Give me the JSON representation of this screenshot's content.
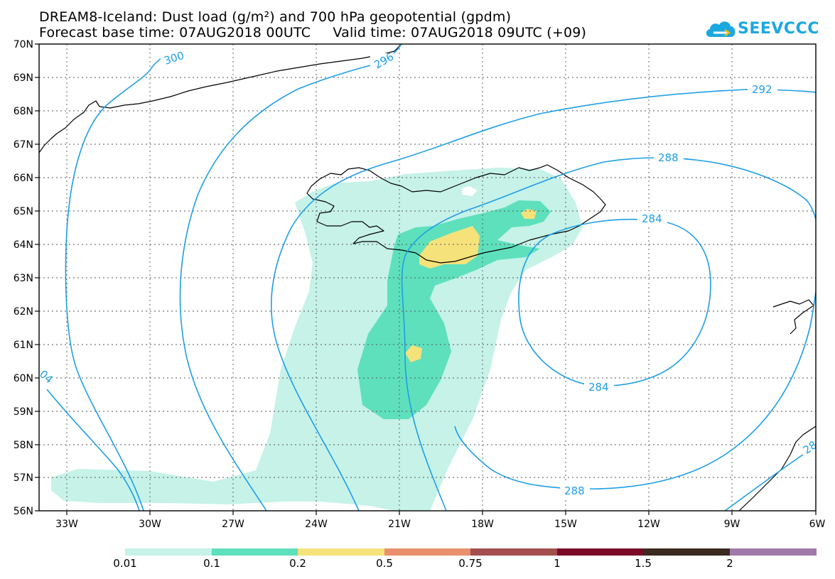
{
  "title_line1": "DREAM8-Iceland: Dust load (g/m²) and 700 hPa geopotential (gpdm)",
  "title_line2": "Forecast base time: 07AUG2018 00UTC     Valid time: 07AUG2018 09UTC (+09)",
  "logo_text": "SEEVCCC",
  "lat_labels": [
    "70N",
    "69N",
    "68N",
    "67N",
    "66N",
    "65N",
    "64N",
    "63N",
    "62N",
    "61N",
    "60N",
    "59N",
    "58N",
    "57N",
    "56N"
  ],
  "lon_labels": [
    "33W",
    "30W",
    "27W",
    "24W",
    "21W",
    "18W",
    "15W",
    "12W",
    "9W",
    "6W"
  ],
  "contour_labels": {
    "c300": "300",
    "c296": "296",
    "c292": "292",
    "c288a": "288",
    "c288b": "288",
    "c284a": "284",
    "c284b": "284",
    "c304": "04",
    "c28x": "28"
  },
  "colorbar": {
    "colors": [
      "#c6f2e8",
      "#5ee0bc",
      "#f6e27a",
      "#e9906c",
      "#a34f4f",
      "#7a0a28",
      "#3a2a20",
      "#a07aaa"
    ],
    "labels": [
      "0.01",
      "0.1",
      "0.2",
      "0.5",
      "0.75",
      "1",
      "1.5",
      "2"
    ]
  },
  "contour_color": "#1e9ee6",
  "dust_colors": {
    "low": "#c6f2e8",
    "mid": "#5ee0bc",
    "high": "#f6e27a"
  }
}
